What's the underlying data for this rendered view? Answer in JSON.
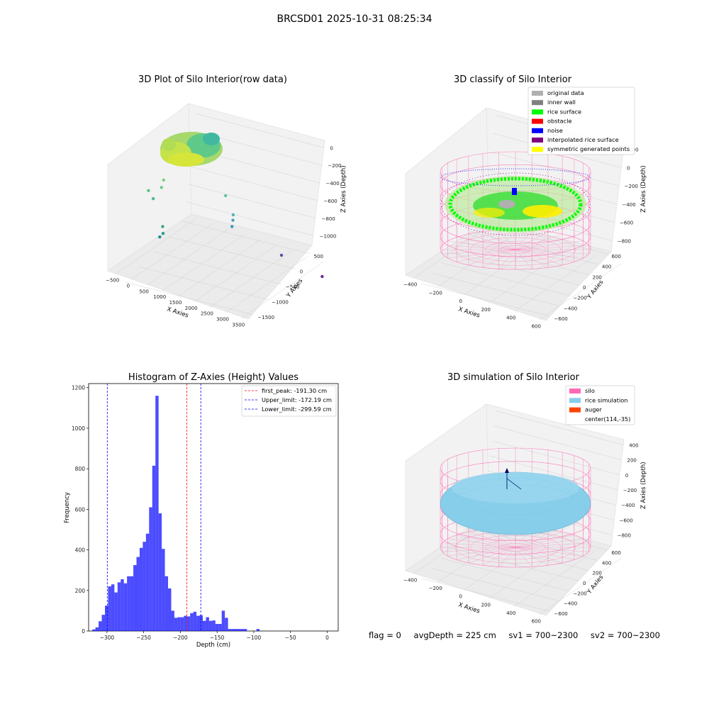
{
  "figure_title": "BRCSD01 2025-10-31 08:25:34",
  "footer": {
    "flag": "flag = 0",
    "avg_depth": "avgDepth = 225 cm",
    "sv1": "sv1 = 700~2300",
    "sv2": "sv2 = 700~2300"
  },
  "colors": {
    "hist_bar": "#0000ff",
    "first_peak": "#ff0000",
    "limit": "#0000ff",
    "silo_wire": "#ff69b4",
    "rice_sim": "#87ceeb",
    "auger": "#ff4500",
    "original": "#b0b0b0",
    "inner_wall": "#808080",
    "rice_surface": "#00ff00",
    "obstacle": "#ff0000",
    "noise": "#0000ff",
    "interpolated": "#800080",
    "symmetric": "#ffff00"
  },
  "chart_data": [
    {
      "type": "scatter",
      "title": "3D Plot of Silo Interior(row data)",
      "xlabel": "X Axies",
      "ylabel": "Y Axies",
      "zlabel": "Z Axies (Depth)",
      "x_ticks": [
        "−500",
        "0",
        "500",
        "1000",
        "1500",
        "2000",
        "2500",
        "3000",
        "3500"
      ],
      "y_ticks": [
        "500",
        "0",
        "−500",
        "−1000",
        "−1500"
      ],
      "z_ticks": [
        "0",
        "−200",
        "−400",
        "−600",
        "−800",
        "−1000"
      ],
      "outlier_points": [
        {
          "x": 900,
          "y": 0,
          "z": -350
        },
        {
          "x": 880,
          "y": 20,
          "z": -420
        },
        {
          "x": 700,
          "y": 100,
          "z": -480
        },
        {
          "x": 750,
          "y": 60,
          "z": -540
        },
        {
          "x": 950,
          "y": 50,
          "z": -760
        },
        {
          "x": 930,
          "y": 30,
          "z": -820
        },
        {
          "x": 870,
          "y": 40,
          "z": -860
        },
        {
          "x": 2600,
          "y": 200,
          "z": -300
        },
        {
          "x": 2700,
          "y": 150,
          "z": -450
        },
        {
          "x": 2650,
          "y": 120,
          "z": -500
        },
        {
          "x": 2600,
          "y": 100,
          "z": -560
        },
        {
          "x": 3000,
          "y": -400,
          "z": -700
        },
        {
          "x": 3200,
          "y": -900,
          "z": -800
        }
      ]
    },
    {
      "type": "scatter",
      "title": "3D classify of Silo Interior",
      "xlabel": "X Axies",
      "ylabel": "Y Axies",
      "zlabel": "Z Axies (Depth)",
      "x_ticks": [
        "−400",
        "−200",
        "0",
        "200",
        "400",
        "600"
      ],
      "y_ticks": [
        "600",
        "400",
        "200",
        "0",
        "−200",
        "−400",
        "−600"
      ],
      "z_ticks": [
        "200",
        "0",
        "−200",
        "−400",
        "−600",
        "−800"
      ],
      "legend": [
        {
          "label": "original data",
          "color": "#b0b0b0"
        },
        {
          "label": "inner wall",
          "color": "#808080"
        },
        {
          "label": "rice surface",
          "color": "#00ff00"
        },
        {
          "label": "obstacle",
          "color": "#ff0000"
        },
        {
          "label": "noise",
          "color": "#0000ff"
        },
        {
          "label": "interpolated rice surface",
          "color": "#800080"
        },
        {
          "label": "symmetric generated points",
          "color": "#ffff00"
        }
      ],
      "legend_placement": "top-right"
    },
    {
      "type": "bar",
      "title": "Histogram of Z-Axies (Height) Values",
      "xlabel": "Depth (cm)",
      "ylabel": "Frequency",
      "xlim": [
        -325,
        15
      ],
      "ylim": [
        0,
        1220
      ],
      "x_ticks": [
        -300,
        -250,
        -200,
        -150,
        -100,
        -50,
        0
      ],
      "y_ticks": [
        0,
        200,
        400,
        600,
        800,
        1000,
        1200
      ],
      "bin_start": -320,
      "bin_width": 4.3,
      "values": [
        8,
        18,
        48,
        80,
        125,
        220,
        230,
        190,
        240,
        255,
        235,
        270,
        270,
        325,
        365,
        410,
        440,
        480,
        610,
        815,
        1160,
        580,
        405,
        270,
        210,
        100,
        65,
        68,
        68,
        75,
        72,
        88,
        95,
        75,
        78,
        50,
        68,
        50,
        52,
        35,
        35,
        100,
        65,
        10,
        10,
        10,
        10,
        10,
        10,
        0,
        0,
        0,
        10
      ],
      "vlines": [
        {
          "label": "first_peak: -191.30 cm",
          "x": -191.3,
          "color": "#ff0000"
        },
        {
          "label": "Upper_limit: -172.19 cm",
          "x": -172.19,
          "color": "#0000ff"
        },
        {
          "label": "Lower_limit: -299.59 cm",
          "x": -299.59,
          "color": "#0000ff"
        }
      ],
      "legend_placement": "top-right"
    },
    {
      "type": "scatter",
      "title": "3D simulation of Silo Interior",
      "xlabel": "X Axies",
      "ylabel": "Y Axies",
      "zlabel": "Z Axies (Depth)",
      "x_ticks": [
        "−400",
        "−200",
        "0",
        "200",
        "400",
        "600"
      ],
      "y_ticks": [
        "600",
        "400",
        "200",
        "0",
        "−200",
        "−400",
        "−600"
      ],
      "z_ticks": [
        "400",
        "200",
        "0",
        "−200",
        "−400",
        "−600",
        "−800"
      ],
      "legend": [
        {
          "label": "silo",
          "color": "#ff69b4"
        },
        {
          "label": "rice simulation",
          "color": "#87ceeb"
        },
        {
          "label": "auger",
          "color": "#ff4500"
        },
        {
          "label": "center(114,-35)",
          "color": ""
        }
      ],
      "legend_placement": "top-right"
    }
  ]
}
